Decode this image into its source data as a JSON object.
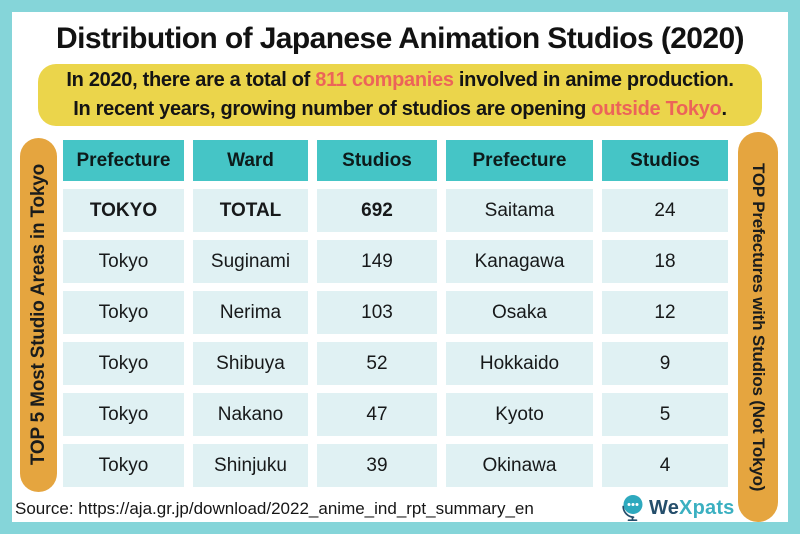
{
  "title": "Distribution of Japanese Animation Studios (2020)",
  "callout": {
    "line1_before": "In 2020, there are a total of ",
    "line1_highlight": "811 companies",
    "line1_after": " involved in anime production.",
    "line2_before": "In recent years, growing number of studios are opening ",
    "line2_highlight": "outside Tokyo",
    "line2_after": "."
  },
  "left_banner": "TOP 5 Most Studio Areas in Tokyo",
  "right_banner": "TOP Prefectures with Studios (Not Tokyo)",
  "table": {
    "headers": [
      "Prefecture",
      "Ward",
      "Studios",
      "Prefecture",
      "Studios"
    ],
    "rows": [
      [
        {
          "text": "TOKYO",
          "bold": true
        },
        {
          "text": "TOTAL",
          "bold": true
        },
        {
          "text": "692",
          "bold": true
        },
        {
          "text": "Saitama",
          "bold": false
        },
        {
          "text": "24",
          "bold": false
        }
      ],
      [
        {
          "text": "Tokyo",
          "bold": false
        },
        {
          "text": "Suginami",
          "bold": false
        },
        {
          "text": "149",
          "bold": false
        },
        {
          "text": "Kanagawa",
          "bold": false
        },
        {
          "text": "18",
          "bold": false
        }
      ],
      [
        {
          "text": "Tokyo",
          "bold": false
        },
        {
          "text": "Nerima",
          "bold": false
        },
        {
          "text": "103",
          "bold": false
        },
        {
          "text": "Osaka",
          "bold": false
        },
        {
          "text": "12",
          "bold": false
        }
      ],
      [
        {
          "text": "Tokyo",
          "bold": false
        },
        {
          "text": "Shibuya",
          "bold": false
        },
        {
          "text": "52",
          "bold": false
        },
        {
          "text": "Hokkaido",
          "bold": false
        },
        {
          "text": "9",
          "bold": false
        }
      ],
      [
        {
          "text": "Tokyo",
          "bold": false
        },
        {
          "text": "Nakano",
          "bold": false
        },
        {
          "text": "47",
          "bold": false
        },
        {
          "text": "Kyoto",
          "bold": false
        },
        {
          "text": "5",
          "bold": false
        }
      ],
      [
        {
          "text": "Tokyo",
          "bold": false
        },
        {
          "text": "Shinjuku",
          "bold": false
        },
        {
          "text": "39",
          "bold": false
        },
        {
          "text": "Okinawa",
          "bold": false
        },
        {
          "text": "4",
          "bold": false
        }
      ]
    ]
  },
  "source": "Source: https://aja.gr.jp/download/2022_anime_ind_rpt_summary_en",
  "logo": {
    "we": "We",
    "xpats": "Xpats"
  },
  "colors": {
    "border_teal": "#85D5D9",
    "header_teal": "#45C5C6",
    "cell_light": "#E0F1F3",
    "callout_yellow": "#EBD54B",
    "banner_orange": "#E5A53F",
    "highlight_red": "#EC6459",
    "logo_navy": "#254E6B",
    "logo_teal": "#3BB0C1"
  },
  "chart_data": [
    {
      "type": "table",
      "title": "TOP 5 Most Studio Areas in Tokyo",
      "columns": [
        "Prefecture",
        "Ward",
        "Studios"
      ],
      "rows": [
        [
          "TOKYO",
          "TOTAL",
          692
        ],
        [
          "Tokyo",
          "Suginami",
          149
        ],
        [
          "Tokyo",
          "Nerima",
          103
        ],
        [
          "Tokyo",
          "Shibuya",
          52
        ],
        [
          "Tokyo",
          "Nakano",
          47
        ],
        [
          "Tokyo",
          "Shinjuku",
          39
        ]
      ]
    },
    {
      "type": "table",
      "title": "TOP Prefectures with Studios (Not Tokyo)",
      "columns": [
        "Prefecture",
        "Studios"
      ],
      "rows": [
        [
          "Saitama",
          24
        ],
        [
          "Kanagawa",
          18
        ],
        [
          "Osaka",
          12
        ],
        [
          "Hokkaido",
          9
        ],
        [
          "Kyoto",
          5
        ],
        [
          "Okinawa",
          4
        ]
      ]
    }
  ]
}
